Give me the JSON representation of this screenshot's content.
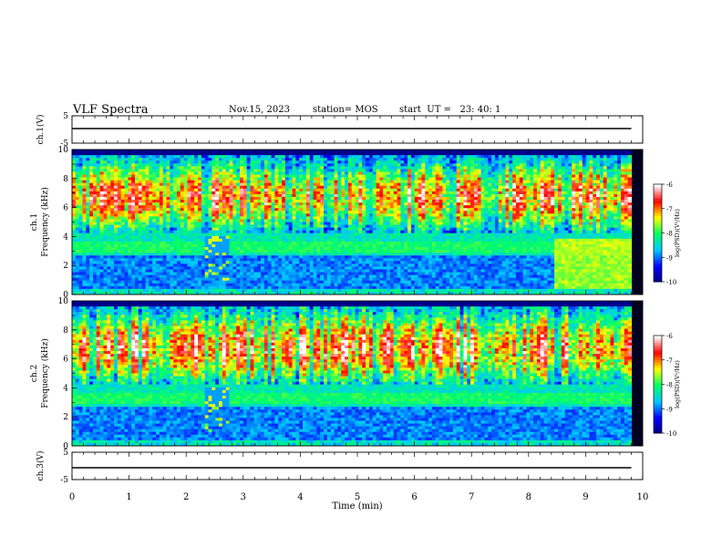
{
  "header": {
    "title": "VLF Spectra",
    "date": "Nov.15, 2023",
    "station": "station= MOS",
    "start": "start  UT =   23: 40: 1"
  },
  "chart_data": [
    {
      "type": "line",
      "panel": "ch1-waveform",
      "ylabel": "ch.1(V)",
      "ylim": [
        -5,
        5
      ],
      "yticks": [
        "5",
        "-5"
      ],
      "x": [
        0,
        9.8
      ],
      "series": [
        {
          "values": [
            0,
            0
          ]
        }
      ]
    },
    {
      "type": "heatmap",
      "panel": "ch1-spectrogram",
      "ylabel": "ch.1\nFrequency (kHz)",
      "ylim": [
        0,
        10
      ],
      "yticks": [
        "0",
        "2",
        "4",
        "6",
        "8",
        "10"
      ],
      "xlim": [
        0,
        10
      ],
      "data_end_min": 9.8,
      "colorbar": {
        "label": "log(PSD)(V²/Hz)",
        "ticks": [
          "-6",
          "-7",
          "-8",
          "-9",
          "-10"
        ],
        "range": [
          -10,
          -6
        ]
      }
    },
    {
      "type": "heatmap",
      "panel": "ch2-spectrogram",
      "ylabel": "ch.2\nFrequency (kHz)",
      "ylim": [
        0,
        10
      ],
      "yticks": [
        "0",
        "2",
        "4",
        "6",
        "8",
        "10"
      ],
      "xlim": [
        0,
        10
      ],
      "data_end_min": 9.8,
      "colorbar": {
        "label": "log(PSD)(V²/Hz)",
        "ticks": [
          "-6",
          "-7",
          "-8",
          "-9",
          "-10"
        ],
        "range": [
          -10,
          -6
        ]
      }
    },
    {
      "type": "line",
      "panel": "ch3-waveform",
      "ylabel": "ch.3(V)",
      "ylim": [
        -5,
        5
      ],
      "yticks": [
        "5",
        "-5"
      ],
      "x": [
        0,
        9.8
      ],
      "series": [
        {
          "values": [
            0,
            0
          ]
        }
      ]
    }
  ],
  "xaxis": {
    "label": "Time (min)",
    "ticks": [
      "0",
      "1",
      "2",
      "3",
      "4",
      "5",
      "6",
      "7",
      "8",
      "9",
      "10"
    ]
  },
  "colors": {
    "colormap": [
      "#000080",
      "#0000ff",
      "#00c8ff",
      "#00ff66",
      "#ffff00",
      "#ff0000",
      "#ffffff"
    ]
  }
}
